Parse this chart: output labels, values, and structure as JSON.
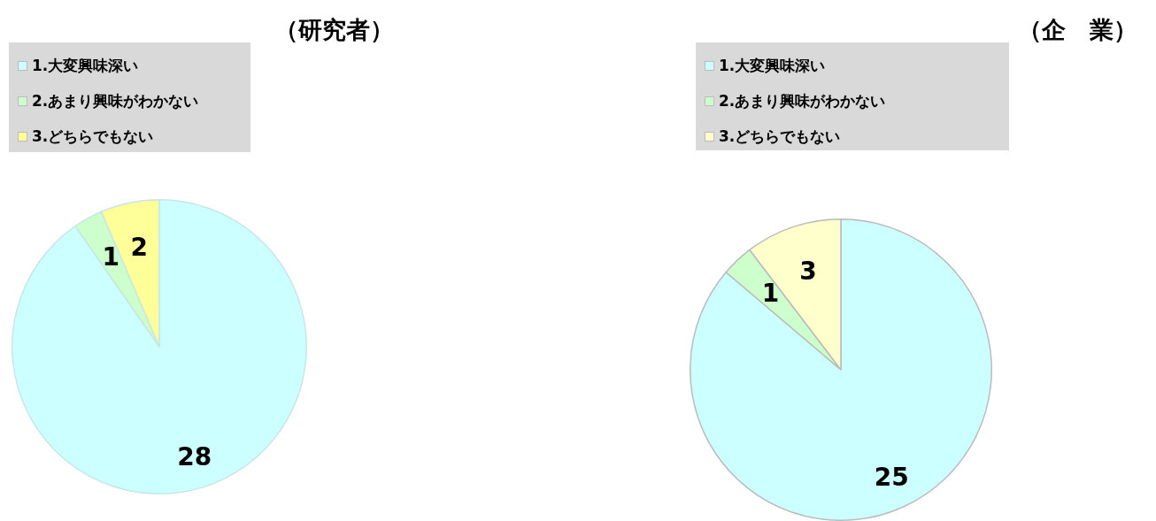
{
  "chart_data": [
    {
      "type": "pie",
      "title": "（研究者）",
      "categories": [
        "1.大変興味深い",
        "2.あまり興味がわかない",
        "3.どちらでもない"
      ],
      "values": [
        28,
        1,
        2
      ],
      "colors": [
        "#ccffff",
        "#ccffcc",
        "#ffff99"
      ],
      "data_labels": true,
      "legend": "top left"
    },
    {
      "type": "pie",
      "title": "（企　業）",
      "categories": [
        "1.大変興味深い",
        "2.あまり興味がわかない",
        "3.どちらでもない"
      ],
      "values": [
        25,
        1,
        3
      ],
      "colors": [
        "#ccffff",
        "#ccffcc",
        "#ffffcc"
      ],
      "data_labels": true,
      "legend": "top left"
    }
  ]
}
